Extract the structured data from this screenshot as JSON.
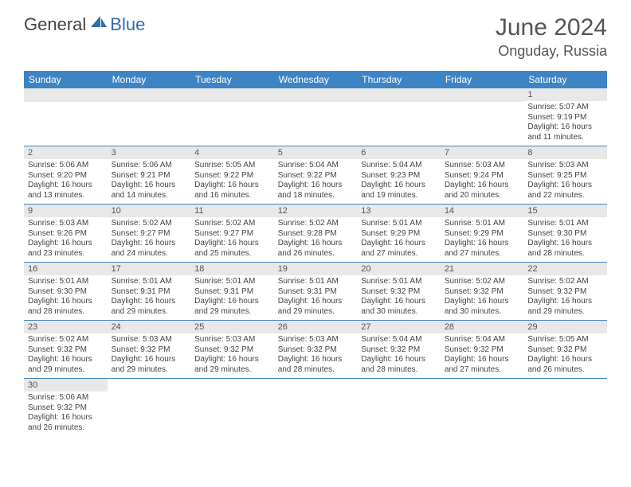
{
  "brand": {
    "part1": "General",
    "part2": "Blue"
  },
  "title": "June 2024",
  "location": "Onguday, Russia",
  "day_headers": [
    "Sunday",
    "Monday",
    "Tuesday",
    "Wednesday",
    "Thursday",
    "Friday",
    "Saturday"
  ],
  "colors": {
    "header_bg": "#3d84c4",
    "header_text": "#ffffff",
    "daynum_bg": "#e8e8e8",
    "row_border": "#3d84c4",
    "brand_blue": "#2f6ead"
  },
  "weeks": [
    [
      {
        "n": "",
        "lines": []
      },
      {
        "n": "",
        "lines": []
      },
      {
        "n": "",
        "lines": []
      },
      {
        "n": "",
        "lines": []
      },
      {
        "n": "",
        "lines": []
      },
      {
        "n": "",
        "lines": []
      },
      {
        "n": "1",
        "lines": [
          "Sunrise: 5:07 AM",
          "Sunset: 9:19 PM",
          "Daylight: 16 hours",
          "and 11 minutes."
        ]
      }
    ],
    [
      {
        "n": "2",
        "lines": [
          "Sunrise: 5:06 AM",
          "Sunset: 9:20 PM",
          "Daylight: 16 hours",
          "and 13 minutes."
        ]
      },
      {
        "n": "3",
        "lines": [
          "Sunrise: 5:06 AM",
          "Sunset: 9:21 PM",
          "Daylight: 16 hours",
          "and 14 minutes."
        ]
      },
      {
        "n": "4",
        "lines": [
          "Sunrise: 5:05 AM",
          "Sunset: 9:22 PM",
          "Daylight: 16 hours",
          "and 16 minutes."
        ]
      },
      {
        "n": "5",
        "lines": [
          "Sunrise: 5:04 AM",
          "Sunset: 9:22 PM",
          "Daylight: 16 hours",
          "and 18 minutes."
        ]
      },
      {
        "n": "6",
        "lines": [
          "Sunrise: 5:04 AM",
          "Sunset: 9:23 PM",
          "Daylight: 16 hours",
          "and 19 minutes."
        ]
      },
      {
        "n": "7",
        "lines": [
          "Sunrise: 5:03 AM",
          "Sunset: 9:24 PM",
          "Daylight: 16 hours",
          "and 20 minutes."
        ]
      },
      {
        "n": "8",
        "lines": [
          "Sunrise: 5:03 AM",
          "Sunset: 9:25 PM",
          "Daylight: 16 hours",
          "and 22 minutes."
        ]
      }
    ],
    [
      {
        "n": "9",
        "lines": [
          "Sunrise: 5:03 AM",
          "Sunset: 9:26 PM",
          "Daylight: 16 hours",
          "and 23 minutes."
        ]
      },
      {
        "n": "10",
        "lines": [
          "Sunrise: 5:02 AM",
          "Sunset: 9:27 PM",
          "Daylight: 16 hours",
          "and 24 minutes."
        ]
      },
      {
        "n": "11",
        "lines": [
          "Sunrise: 5:02 AM",
          "Sunset: 9:27 PM",
          "Daylight: 16 hours",
          "and 25 minutes."
        ]
      },
      {
        "n": "12",
        "lines": [
          "Sunrise: 5:02 AM",
          "Sunset: 9:28 PM",
          "Daylight: 16 hours",
          "and 26 minutes."
        ]
      },
      {
        "n": "13",
        "lines": [
          "Sunrise: 5:01 AM",
          "Sunset: 9:29 PM",
          "Daylight: 16 hours",
          "and 27 minutes."
        ]
      },
      {
        "n": "14",
        "lines": [
          "Sunrise: 5:01 AM",
          "Sunset: 9:29 PM",
          "Daylight: 16 hours",
          "and 27 minutes."
        ]
      },
      {
        "n": "15",
        "lines": [
          "Sunrise: 5:01 AM",
          "Sunset: 9:30 PM",
          "Daylight: 16 hours",
          "and 28 minutes."
        ]
      }
    ],
    [
      {
        "n": "16",
        "lines": [
          "Sunrise: 5:01 AM",
          "Sunset: 9:30 PM",
          "Daylight: 16 hours",
          "and 28 minutes."
        ]
      },
      {
        "n": "17",
        "lines": [
          "Sunrise: 5:01 AM",
          "Sunset: 9:31 PM",
          "Daylight: 16 hours",
          "and 29 minutes."
        ]
      },
      {
        "n": "18",
        "lines": [
          "Sunrise: 5:01 AM",
          "Sunset: 9:31 PM",
          "Daylight: 16 hours",
          "and 29 minutes."
        ]
      },
      {
        "n": "19",
        "lines": [
          "Sunrise: 5:01 AM",
          "Sunset: 9:31 PM",
          "Daylight: 16 hours",
          "and 29 minutes."
        ]
      },
      {
        "n": "20",
        "lines": [
          "Sunrise: 5:01 AM",
          "Sunset: 9:32 PM",
          "Daylight: 16 hours",
          "and 30 minutes."
        ]
      },
      {
        "n": "21",
        "lines": [
          "Sunrise: 5:02 AM",
          "Sunset: 9:32 PM",
          "Daylight: 16 hours",
          "and 30 minutes."
        ]
      },
      {
        "n": "22",
        "lines": [
          "Sunrise: 5:02 AM",
          "Sunset: 9:32 PM",
          "Daylight: 16 hours",
          "and 29 minutes."
        ]
      }
    ],
    [
      {
        "n": "23",
        "lines": [
          "Sunrise: 5:02 AM",
          "Sunset: 9:32 PM",
          "Daylight: 16 hours",
          "and 29 minutes."
        ]
      },
      {
        "n": "24",
        "lines": [
          "Sunrise: 5:03 AM",
          "Sunset: 9:32 PM",
          "Daylight: 16 hours",
          "and 29 minutes."
        ]
      },
      {
        "n": "25",
        "lines": [
          "Sunrise: 5:03 AM",
          "Sunset: 9:32 PM",
          "Daylight: 16 hours",
          "and 29 minutes."
        ]
      },
      {
        "n": "26",
        "lines": [
          "Sunrise: 5:03 AM",
          "Sunset: 9:32 PM",
          "Daylight: 16 hours",
          "and 28 minutes."
        ]
      },
      {
        "n": "27",
        "lines": [
          "Sunrise: 5:04 AM",
          "Sunset: 9:32 PM",
          "Daylight: 16 hours",
          "and 28 minutes."
        ]
      },
      {
        "n": "28",
        "lines": [
          "Sunrise: 5:04 AM",
          "Sunset: 9:32 PM",
          "Daylight: 16 hours",
          "and 27 minutes."
        ]
      },
      {
        "n": "29",
        "lines": [
          "Sunrise: 5:05 AM",
          "Sunset: 9:32 PM",
          "Daylight: 16 hours",
          "and 26 minutes."
        ]
      }
    ],
    [
      {
        "n": "30",
        "lines": [
          "Sunrise: 5:06 AM",
          "Sunset: 9:32 PM",
          "Daylight: 16 hours",
          "and 26 minutes."
        ]
      },
      {
        "n": "",
        "lines": []
      },
      {
        "n": "",
        "lines": []
      },
      {
        "n": "",
        "lines": []
      },
      {
        "n": "",
        "lines": []
      },
      {
        "n": "",
        "lines": []
      },
      {
        "n": "",
        "lines": []
      }
    ]
  ]
}
